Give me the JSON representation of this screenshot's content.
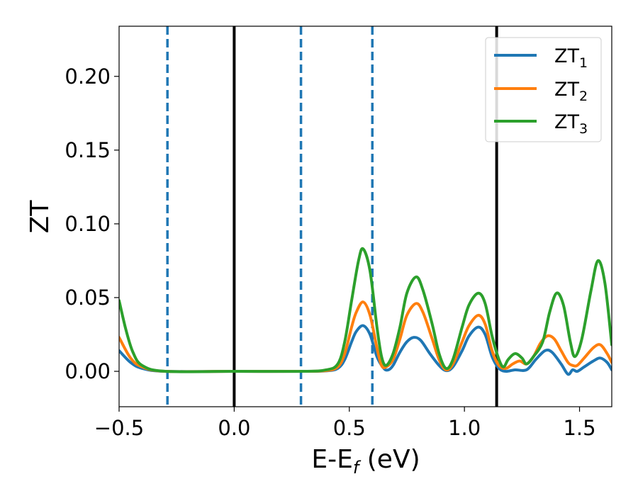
{
  "chart_data": {
    "type": "line",
    "xlabel": "E-E",
    "xlabel_sub": "f",
    "xlabel_unit": " (eV)",
    "ylabel": "ZT",
    "xlim": [
      -0.5,
      1.64
    ],
    "ylim": [
      -0.024,
      0.234
    ],
    "xticks": [
      -0.5,
      0.0,
      0.5,
      1.0,
      1.5
    ],
    "xtick_labels": [
      "−0.5",
      "0.0",
      "0.5",
      "1.0",
      "1.5"
    ],
    "yticks": [
      0.0,
      0.05,
      0.1,
      0.15,
      0.2
    ],
    "ytick_labels": [
      "0.00",
      "0.05",
      "0.10",
      "0.15",
      "0.20"
    ],
    "grid": false,
    "legend_position": "top-right",
    "vlines": [
      {
        "x": -0.29,
        "style": "dashed",
        "color": "#1f77b4"
      },
      {
        "x": 0.0,
        "style": "solid",
        "color": "#000000"
      },
      {
        "x": 0.29,
        "style": "dashed",
        "color": "#1f77b4"
      },
      {
        "x": 0.6,
        "style": "dashed",
        "color": "#1f77b4"
      },
      {
        "x": 1.14,
        "style": "solid",
        "color": "#000000"
      }
    ],
    "series": [
      {
        "name": "ZT",
        "name_sub": "1",
        "color": "#1f77b4",
        "points": [
          [
            -0.5,
            0.014
          ],
          [
            -0.45,
            0.006
          ],
          [
            -0.4,
            0.002
          ],
          [
            -0.3,
            0.0
          ],
          [
            0.0,
            0.0
          ],
          [
            0.3,
            0.0
          ],
          [
            0.4,
            0.0003
          ],
          [
            0.45,
            0.002
          ],
          [
            0.48,
            0.008
          ],
          [
            0.51,
            0.02
          ],
          [
            0.53,
            0.027
          ],
          [
            0.56,
            0.031
          ],
          [
            0.59,
            0.025
          ],
          [
            0.62,
            0.01
          ],
          [
            0.65,
            0.002
          ],
          [
            0.67,
            0.001
          ],
          [
            0.69,
            0.004
          ],
          [
            0.72,
            0.013
          ],
          [
            0.75,
            0.02
          ],
          [
            0.78,
            0.023
          ],
          [
            0.81,
            0.021
          ],
          [
            0.85,
            0.012
          ],
          [
            0.89,
            0.004
          ],
          [
            0.92,
            0.0005
          ],
          [
            0.95,
            0.003
          ],
          [
            0.99,
            0.014
          ],
          [
            1.02,
            0.024
          ],
          [
            1.06,
            0.03
          ],
          [
            1.09,
            0.025
          ],
          [
            1.12,
            0.01
          ],
          [
            1.15,
            0.002
          ],
          [
            1.18,
            0.0
          ],
          [
            1.22,
            0.001
          ],
          [
            1.27,
            0.001
          ],
          [
            1.31,
            0.008
          ],
          [
            1.35,
            0.014
          ],
          [
            1.38,
            0.013
          ],
          [
            1.42,
            0.005
          ],
          [
            1.45,
            -0.002
          ],
          [
            1.47,
            0.001
          ],
          [
            1.49,
            0.0
          ],
          [
            1.52,
            0.003
          ],
          [
            1.56,
            0.007
          ],
          [
            1.59,
            0.009
          ],
          [
            1.62,
            0.006
          ],
          [
            1.64,
            0.001
          ]
        ]
      },
      {
        "name": "ZT",
        "name_sub": "2",
        "color": "#ff7f0e",
        "points": [
          [
            -0.5,
            0.023
          ],
          [
            -0.45,
            0.009
          ],
          [
            -0.4,
            0.003
          ],
          [
            -0.3,
            0.0
          ],
          [
            0.0,
            0.0
          ],
          [
            0.3,
            0.0
          ],
          [
            0.4,
            0.0005
          ],
          [
            0.45,
            0.003
          ],
          [
            0.48,
            0.012
          ],
          [
            0.51,
            0.03
          ],
          [
            0.53,
            0.04
          ],
          [
            0.56,
            0.047
          ],
          [
            0.59,
            0.038
          ],
          [
            0.62,
            0.016
          ],
          [
            0.64,
            0.004
          ],
          [
            0.66,
            0.003
          ],
          [
            0.69,
            0.008
          ],
          [
            0.72,
            0.022
          ],
          [
            0.75,
            0.038
          ],
          [
            0.79,
            0.046
          ],
          [
            0.82,
            0.04
          ],
          [
            0.86,
            0.022
          ],
          [
            0.89,
            0.008
          ],
          [
            0.92,
            0.001
          ],
          [
            0.95,
            0.005
          ],
          [
            0.99,
            0.02
          ],
          [
            1.02,
            0.031
          ],
          [
            1.06,
            0.038
          ],
          [
            1.09,
            0.032
          ],
          [
            1.12,
            0.014
          ],
          [
            1.15,
            0.004
          ],
          [
            1.18,
            0.002
          ],
          [
            1.21,
            0.005
          ],
          [
            1.24,
            0.007
          ],
          [
            1.27,
            0.005
          ],
          [
            1.3,
            0.01
          ],
          [
            1.33,
            0.019
          ],
          [
            1.36,
            0.024
          ],
          [
            1.39,
            0.022
          ],
          [
            1.42,
            0.014
          ],
          [
            1.45,
            0.006
          ],
          [
            1.47,
            0.004
          ],
          [
            1.49,
            0.004
          ],
          [
            1.52,
            0.009
          ],
          [
            1.56,
            0.016
          ],
          [
            1.59,
            0.018
          ],
          [
            1.62,
            0.012
          ],
          [
            1.64,
            0.006
          ]
        ]
      },
      {
        "name": "ZT",
        "name_sub": "3",
        "color": "#2ca02c",
        "points": [
          [
            -0.5,
            0.048
          ],
          [
            -0.47,
            0.028
          ],
          [
            -0.44,
            0.013
          ],
          [
            -0.4,
            0.004
          ],
          [
            -0.3,
            0.0
          ],
          [
            0.0,
            0.0
          ],
          [
            0.3,
            0.0
          ],
          [
            0.4,
            0.001
          ],
          [
            0.45,
            0.005
          ],
          [
            0.48,
            0.02
          ],
          [
            0.51,
            0.048
          ],
          [
            0.54,
            0.075
          ],
          [
            0.56,
            0.083
          ],
          [
            0.59,
            0.068
          ],
          [
            0.62,
            0.03
          ],
          [
            0.64,
            0.01
          ],
          [
            0.66,
            0.004
          ],
          [
            0.69,
            0.012
          ],
          [
            0.72,
            0.03
          ],
          [
            0.75,
            0.053
          ],
          [
            0.79,
            0.064
          ],
          [
            0.82,
            0.055
          ],
          [
            0.86,
            0.032
          ],
          [
            0.89,
            0.012
          ],
          [
            0.92,
            0.002
          ],
          [
            0.95,
            0.008
          ],
          [
            0.99,
            0.03
          ],
          [
            1.02,
            0.045
          ],
          [
            1.06,
            0.053
          ],
          [
            1.09,
            0.046
          ],
          [
            1.12,
            0.024
          ],
          [
            1.15,
            0.008
          ],
          [
            1.17,
            0.003
          ],
          [
            1.19,
            0.008
          ],
          [
            1.22,
            0.012
          ],
          [
            1.25,
            0.009
          ],
          [
            1.27,
            0.005
          ],
          [
            1.3,
            0.01
          ],
          [
            1.34,
            0.02
          ],
          [
            1.37,
            0.04
          ],
          [
            1.4,
            0.053
          ],
          [
            1.43,
            0.045
          ],
          [
            1.46,
            0.02
          ],
          [
            1.48,
            0.01
          ],
          [
            1.51,
            0.022
          ],
          [
            1.55,
            0.055
          ],
          [
            1.58,
            0.075
          ],
          [
            1.61,
            0.06
          ],
          [
            1.64,
            0.018
          ]
        ]
      }
    ]
  }
}
